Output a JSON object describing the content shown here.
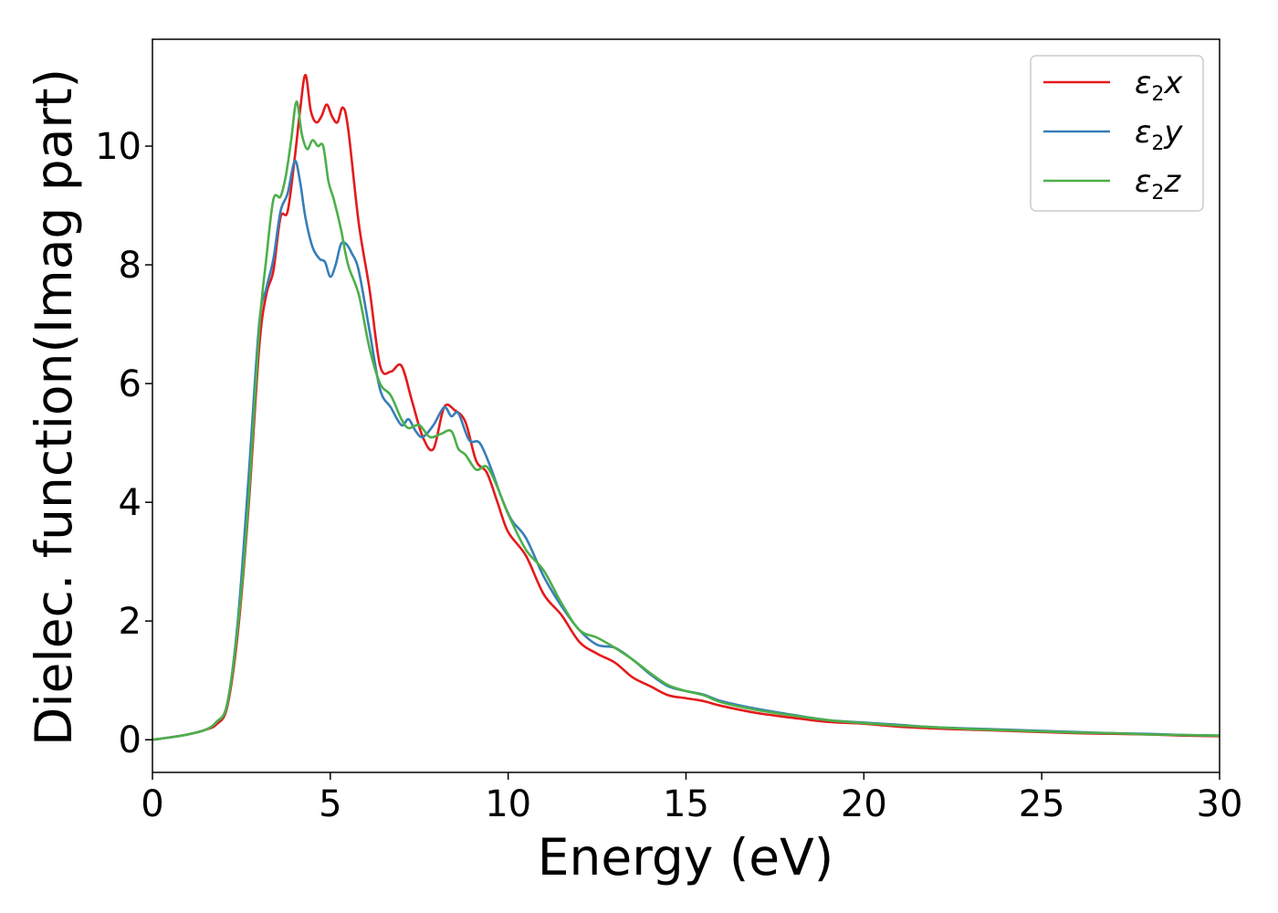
{
  "chart_data": {
    "type": "line",
    "xlabel": "Energy (eV)",
    "ylabel": "Dielec. function(Imag part)",
    "xlim": [
      0,
      30
    ],
    "ylim": [
      -0.55,
      11.8
    ],
    "xticks": [
      0,
      5,
      10,
      15,
      20,
      25,
      30
    ],
    "yticks": [
      0,
      2,
      4,
      6,
      8,
      10
    ],
    "grid": false,
    "legend_position": "top-right",
    "series": [
      {
        "name": "ε2x",
        "legend_base": "ε",
        "legend_sub": "2",
        "legend_suffix": "x",
        "color": "#e41a1c",
        "x": [
          0,
          0.5,
          1.0,
          1.5,
          1.8,
          2.1,
          2.4,
          2.7,
          3.0,
          3.2,
          3.4,
          3.6,
          3.8,
          4.0,
          4.15,
          4.3,
          4.45,
          4.6,
          4.75,
          4.9,
          5.05,
          5.2,
          5.35,
          5.5,
          5.8,
          6.1,
          6.4,
          6.7,
          7.0,
          7.3,
          7.6,
          7.9,
          8.2,
          8.5,
          8.8,
          9.1,
          9.4,
          9.7,
          10.0,
          10.5,
          11.0,
          11.5,
          12.0,
          12.5,
          13.0,
          13.5,
          14.0,
          14.5,
          15.0,
          15.5,
          16.0,
          17.0,
          18.0,
          19.0,
          20.0,
          21.0,
          22.0,
          23.0,
          24.0,
          25.0,
          26.0,
          27.0,
          28.0,
          29.0,
          30.0
        ],
        "values": [
          0.0,
          0.04,
          0.09,
          0.17,
          0.26,
          0.55,
          1.8,
          3.9,
          6.6,
          7.5,
          7.9,
          8.8,
          8.9,
          9.8,
          10.6,
          11.2,
          10.6,
          10.4,
          10.5,
          10.7,
          10.5,
          10.4,
          10.65,
          10.3,
          8.7,
          7.6,
          6.3,
          6.2,
          6.3,
          5.7,
          5.1,
          4.9,
          5.6,
          5.55,
          5.35,
          4.7,
          4.5,
          4.0,
          3.5,
          3.1,
          2.45,
          2.1,
          1.65,
          1.45,
          1.3,
          1.05,
          0.9,
          0.75,
          0.7,
          0.65,
          0.57,
          0.45,
          0.37,
          0.3,
          0.27,
          0.22,
          0.19,
          0.17,
          0.15,
          0.13,
          0.11,
          0.1,
          0.09,
          0.07,
          0.06
        ]
      },
      {
        "name": "ε2y",
        "legend_base": "ε",
        "legend_sub": "2",
        "legend_suffix": "y",
        "color": "#377eb8",
        "x": [
          0,
          0.5,
          1.0,
          1.5,
          1.8,
          2.1,
          2.4,
          2.7,
          3.0,
          3.2,
          3.4,
          3.6,
          3.8,
          4.0,
          4.15,
          4.3,
          4.5,
          4.7,
          4.85,
          5.0,
          5.15,
          5.3,
          5.45,
          5.6,
          5.8,
          6.1,
          6.4,
          6.7,
          7.0,
          7.2,
          7.4,
          7.6,
          7.9,
          8.2,
          8.4,
          8.6,
          8.9,
          9.2,
          9.5,
          9.8,
          10.1,
          10.5,
          11.0,
          11.5,
          12.0,
          12.5,
          13.0,
          13.5,
          14.0,
          14.5,
          15.0,
          15.5,
          16.0,
          17.0,
          18.0,
          19.0,
          20.0,
          21.0,
          22.0,
          23.0,
          24.0,
          25.0,
          26.0,
          27.0,
          28.0,
          29.0,
          30.0
        ],
        "values": [
          0.0,
          0.04,
          0.09,
          0.17,
          0.3,
          0.6,
          2.0,
          4.4,
          7.0,
          7.6,
          8.1,
          8.9,
          9.2,
          9.75,
          9.4,
          8.8,
          8.3,
          8.1,
          8.05,
          7.8,
          8.0,
          8.35,
          8.35,
          8.2,
          7.9,
          6.9,
          5.9,
          5.6,
          5.3,
          5.4,
          5.2,
          5.1,
          5.3,
          5.6,
          5.45,
          5.5,
          5.05,
          5.0,
          4.6,
          4.1,
          3.7,
          3.4,
          2.75,
          2.25,
          1.85,
          1.6,
          1.55,
          1.35,
          1.1,
          0.9,
          0.82,
          0.76,
          0.65,
          0.52,
          0.42,
          0.33,
          0.29,
          0.25,
          0.21,
          0.19,
          0.17,
          0.15,
          0.13,
          0.11,
          0.1,
          0.08,
          0.07
        ]
      },
      {
        "name": "ε2z",
        "legend_base": "ε",
        "legend_sub": "2",
        "legend_suffix": "z",
        "color": "#4daf4a",
        "x": [
          0,
          0.5,
          1.0,
          1.5,
          1.8,
          2.1,
          2.4,
          2.7,
          3.0,
          3.2,
          3.4,
          3.6,
          3.75,
          3.9,
          4.05,
          4.2,
          4.35,
          4.5,
          4.65,
          4.8,
          4.95,
          5.1,
          5.3,
          5.5,
          5.8,
          6.1,
          6.4,
          6.7,
          7.0,
          7.2,
          7.5,
          7.8,
          8.1,
          8.4,
          8.6,
          8.8,
          9.1,
          9.4,
          9.7,
          10.0,
          10.5,
          11.0,
          11.5,
          12.0,
          12.5,
          13.0,
          13.5,
          14.0,
          14.5,
          15.0,
          15.5,
          16.0,
          17.0,
          18.0,
          19.0,
          20.0,
          21.0,
          22.0,
          23.0,
          24.0,
          25.0,
          26.0,
          27.0,
          28.0,
          29.0,
          30.0
        ],
        "values": [
          0.0,
          0.04,
          0.09,
          0.17,
          0.3,
          0.6,
          1.9,
          4.0,
          6.9,
          8.1,
          9.1,
          9.15,
          9.5,
          10.1,
          10.75,
          10.2,
          9.95,
          10.1,
          10.0,
          10.0,
          9.4,
          9.1,
          8.6,
          8.0,
          7.5,
          6.6,
          6.0,
          5.8,
          5.4,
          5.25,
          5.3,
          5.1,
          5.15,
          5.2,
          4.9,
          4.8,
          4.55,
          4.6,
          4.25,
          3.8,
          3.2,
          2.85,
          2.3,
          1.85,
          1.72,
          1.55,
          1.35,
          1.12,
          0.92,
          0.82,
          0.75,
          0.63,
          0.5,
          0.41,
          0.33,
          0.28,
          0.24,
          0.21,
          0.18,
          0.16,
          0.14,
          0.12,
          0.11,
          0.09,
          0.08,
          0.07
        ]
      }
    ]
  }
}
